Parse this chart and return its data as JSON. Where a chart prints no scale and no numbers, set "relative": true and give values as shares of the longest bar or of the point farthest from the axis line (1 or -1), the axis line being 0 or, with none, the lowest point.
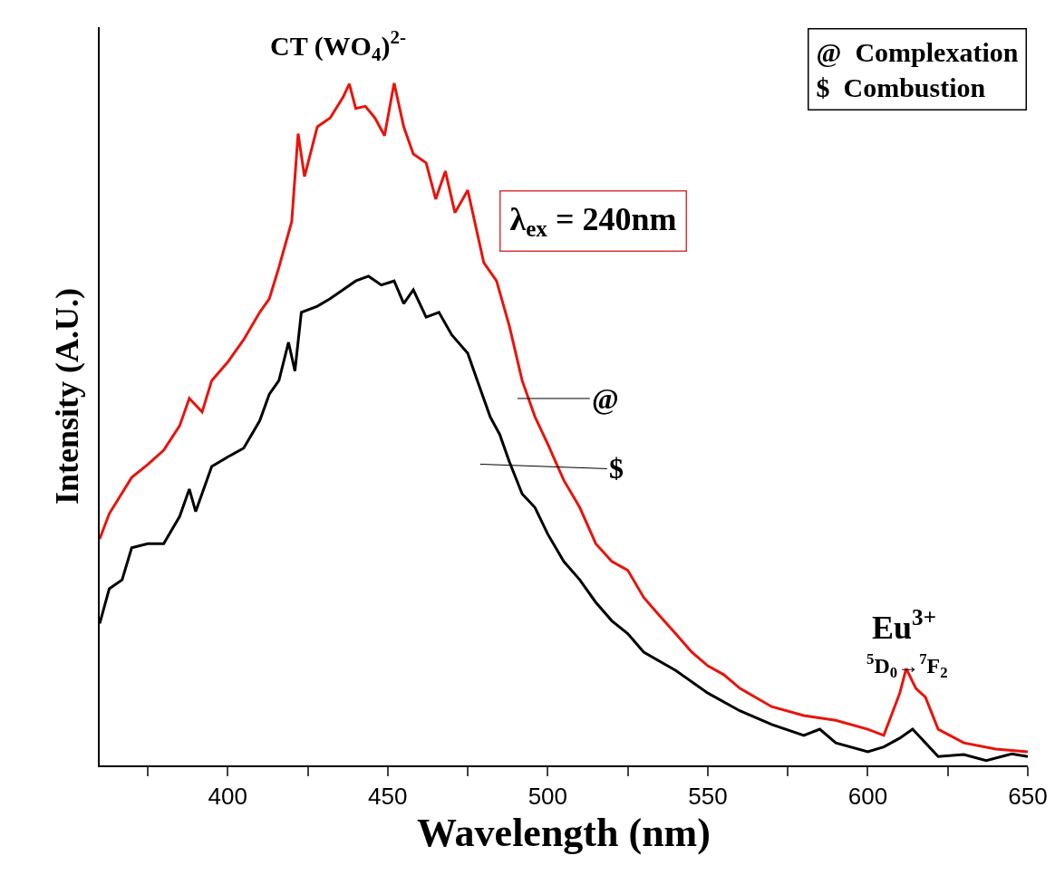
{
  "chart_data": {
    "type": "line",
    "relative": true,
    "xlabel": "Wavelength (nm)",
    "ylabel": "Intensity (A.U.)",
    "xlim": [
      360,
      650
    ],
    "xticks": [
      {
        "value": 375,
        "label": null
      },
      400,
      {
        "value": 425,
        "label": null
      },
      450,
      {
        "value": 475,
        "label": null
      },
      500,
      {
        "value": 525,
        "label": null
      },
      550,
      {
        "value": 575,
        "label": null
      },
      600,
      {
        "value": 625,
        "label": null
      },
      650
    ],
    "marker": "none",
    "line_style": "solid",
    "tick_labels": "x",
    "series": [
      {
        "color": "#e8140c",
        "x": [
          360,
          363,
          370,
          375,
          380,
          385,
          388,
          392,
          395,
          400,
          405,
          410,
          413,
          416,
          420,
          422,
          424,
          428,
          432,
          436,
          438,
          440,
          443,
          446,
          449,
          452,
          455,
          458,
          462,
          465,
          468,
          471,
          475,
          480,
          484,
          488,
          492,
          496,
          500,
          505,
          510,
          515,
          520,
          525,
          530,
          535,
          540,
          545,
          550,
          555,
          560,
          570,
          580,
          590,
          600,
          605,
          610,
          612,
          615,
          618,
          622,
          630,
          640,
          650
        ],
        "values": [
          0.332,
          0.369,
          0.422,
          0.441,
          0.462,
          0.498,
          0.538,
          0.518,
          0.564,
          0.591,
          0.624,
          0.664,
          0.684,
          0.73,
          0.797,
          0.926,
          0.863,
          0.936,
          0.949,
          0.979,
          0.999,
          0.963,
          0.966,
          0.949,
          0.923,
          1.0,
          0.936,
          0.896,
          0.883,
          0.83,
          0.871,
          0.81,
          0.843,
          0.737,
          0.71,
          0.644,
          0.564,
          0.511,
          0.471,
          0.418,
          0.378,
          0.325,
          0.299,
          0.286,
          0.246,
          0.219,
          0.193,
          0.166,
          0.146,
          0.133,
          0.113,
          0.086,
          0.073,
          0.066,
          0.053,
          0.044,
          0.106,
          0.142,
          0.113,
          0.1,
          0.053,
          0.033,
          0.024,
          0.02
        ]
      },
      {
        "color": "#000000",
        "x": [
          360,
          363,
          367,
          370,
          375,
          380,
          385,
          388,
          390,
          395,
          400,
          405,
          410,
          413,
          416,
          419,
          421,
          423,
          428,
          432,
          436,
          440,
          444,
          448,
          452,
          455,
          458,
          462,
          466,
          470,
          475,
          478,
          482,
          485,
          488,
          492,
          496,
          500,
          505,
          510,
          515,
          520,
          525,
          530,
          540,
          550,
          560,
          570,
          580,
          585,
          590,
          600,
          605,
          610,
          614,
          618,
          622,
          630,
          637,
          645,
          650
        ],
        "values": [
          0.208,
          0.259,
          0.272,
          0.319,
          0.325,
          0.325,
          0.365,
          0.405,
          0.372,
          0.438,
          0.452,
          0.465,
          0.505,
          0.544,
          0.564,
          0.62,
          0.578,
          0.664,
          0.673,
          0.684,
          0.697,
          0.71,
          0.717,
          0.704,
          0.71,
          0.677,
          0.697,
          0.657,
          0.664,
          0.631,
          0.604,
          0.564,
          0.511,
          0.485,
          0.445,
          0.398,
          0.378,
          0.339,
          0.299,
          0.272,
          0.239,
          0.212,
          0.193,
          0.166,
          0.139,
          0.106,
          0.08,
          0.06,
          0.044,
          0.053,
          0.033,
          0.02,
          0.027,
          0.04,
          0.053,
          0.033,
          0.013,
          0.016,
          0.007,
          0.017,
          0.013
        ]
      }
    ],
    "annotations": [
      "CT (WO$_{4}$)$^{2-}$",
      "λ$_{ex}$ = 240nm",
      "Eu$^{3+}$",
      "$^{5}$D$_{0}$→$^{7}$F$_{2}$",
      "@  Complexation",
      "$  Combustion",
      "@",
      "$"
    ]
  }
}
